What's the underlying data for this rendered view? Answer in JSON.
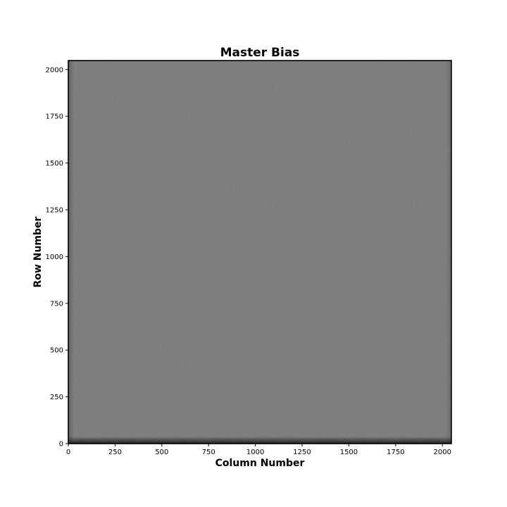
{
  "chart_data": {
    "type": "heatmap",
    "title": "Master Bias",
    "xlabel": "Column Number",
    "ylabel": "Row Number",
    "xlim": [
      0,
      2048
    ],
    "ylim": [
      0,
      2048
    ],
    "x_ticks": [
      0,
      250,
      500,
      750,
      1000,
      1250,
      1500,
      1750,
      2000
    ],
    "y_ticks": [
      0,
      250,
      500,
      750,
      1000,
      1250,
      1500,
      1750,
      2000
    ],
    "colormap": "gray",
    "grid": false,
    "image_tone": {
      "base_color": "#787878",
      "bottom_edge_color": "#202020",
      "left_edge_color": "#606060",
      "right_edge_color": "#6c6c6c"
    }
  }
}
